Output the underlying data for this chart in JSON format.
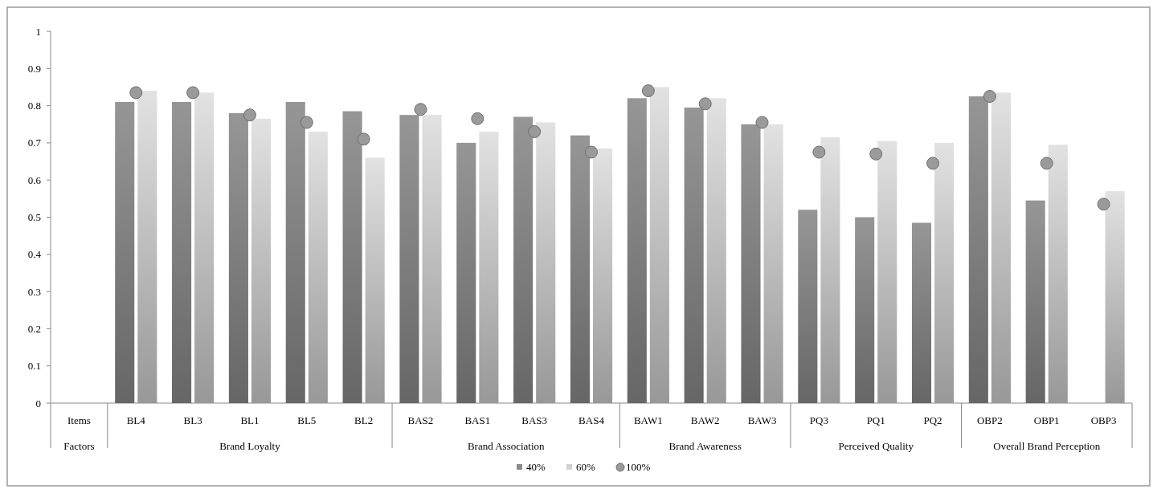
{
  "chart_data": {
    "type": "bar",
    "categories": [
      "Items",
      "BL4",
      "BL3",
      "BL1",
      "BL5",
      "BL2",
      "BAS2",
      "BAS1",
      "BAS3",
      "BAS4",
      "BAW1",
      "BAW2",
      "BAW3",
      "PQ3",
      "PQ1",
      "PQ2",
      "OBP2",
      "OBP1",
      "OBP3"
    ],
    "series": [
      {
        "name": "40%",
        "color": "#8c8c8c",
        "values": [
          null,
          0.81,
          0.81,
          0.78,
          0.81,
          0.785,
          0.775,
          0.7,
          0.77,
          0.72,
          0.82,
          0.795,
          0.75,
          0.52,
          0.5,
          0.485,
          0.825,
          0.545,
          null
        ]
      },
      {
        "name": "60%",
        "color": "#d2d2d2",
        "values": [
          null,
          0.84,
          0.835,
          0.765,
          0.73,
          0.66,
          0.775,
          0.73,
          0.755,
          0.685,
          0.85,
          0.82,
          0.75,
          0.715,
          0.705,
          0.7,
          0.835,
          0.695,
          0.57
        ]
      },
      {
        "name": "100%",
        "type": "scatter",
        "marker": "circle",
        "color": "#9a9a9a",
        "values": [
          null,
          0.835,
          0.835,
          0.775,
          0.755,
          0.71,
          0.79,
          0.765,
          0.73,
          0.675,
          0.84,
          0.805,
          0.755,
          0.675,
          0.67,
          0.645,
          0.825,
          0.645,
          0.535
        ]
      }
    ],
    "annotations": [
      "Factors",
      "Brand Loyalty",
      "Brand Association",
      "Brand Awareness",
      "Perceived Quality",
      "Overall Brand Perception"
    ],
    "ylim": [
      0,
      1
    ],
    "yticks": [
      0,
      0.1,
      0.2,
      0.3,
      0.4,
      0.5,
      0.6,
      0.7,
      0.8,
      0.9,
      1
    ],
    "legend": "bottom"
  }
}
